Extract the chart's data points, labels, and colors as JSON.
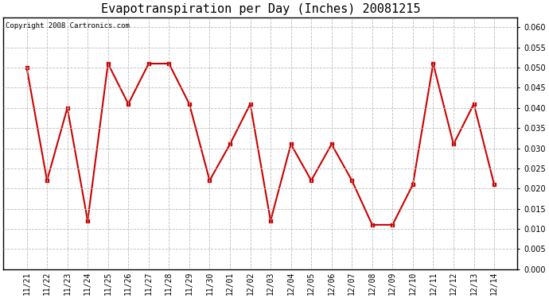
{
  "title": "Evapotranspiration per Day (Inches) 20081215",
  "copyright": "Copyright 2008 Cartronics.com",
  "dates": [
    "11/21",
    "11/22",
    "11/23",
    "11/24",
    "11/25",
    "11/26",
    "11/27",
    "11/28",
    "11/29",
    "11/30",
    "12/01",
    "12/02",
    "12/03",
    "12/04",
    "12/05",
    "12/06",
    "12/07",
    "12/08",
    "12/09",
    "12/10",
    "12/11",
    "12/12",
    "12/13",
    "12/14"
  ],
  "values": [
    0.05,
    0.022,
    0.04,
    0.012,
    0.051,
    0.041,
    0.051,
    0.051,
    0.041,
    0.022,
    0.031,
    0.041,
    0.012,
    0.031,
    0.022,
    0.031,
    0.022,
    0.011,
    0.011,
    0.021,
    0.051,
    0.031,
    0.041,
    0.021
  ],
  "line_color": "#cc0000",
  "marker": "s",
  "marker_size": 3,
  "ylim": [
    0.0,
    0.0625
  ],
  "yticks": [
    0.0,
    0.005,
    0.01,
    0.015,
    0.02,
    0.025,
    0.03,
    0.035,
    0.04,
    0.045,
    0.05,
    0.055,
    0.06
  ],
  "bg_color": "#ffffff",
  "plot_bg": "#ffffff",
  "grid_color": "#bbbbbb",
  "title_fontsize": 11,
  "copyright_fontsize": 6.5,
  "tick_fontsize": 7
}
